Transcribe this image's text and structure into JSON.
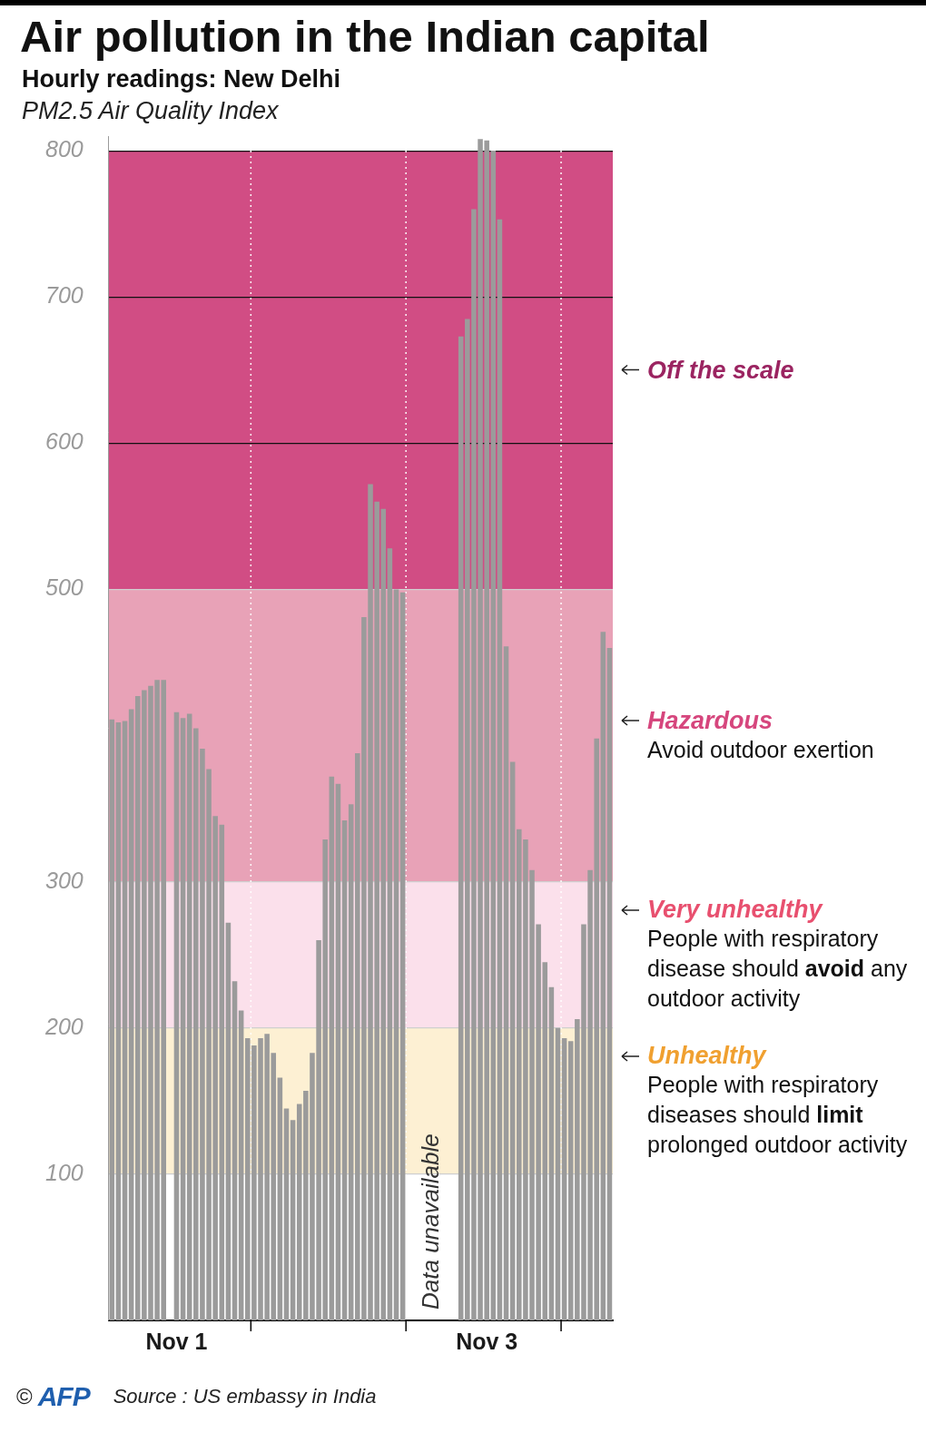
{
  "chart_data": {
    "type": "bar",
    "title": "Air pollution in the Indian capital",
    "subtitle": "Hourly readings: New Delhi",
    "y_label": "PM2.5 Air Quality Index",
    "categories": [
      null,
      null,
      null,
      null,
      null,
      null,
      null,
      null,
      null,
      null,
      "Nov 1",
      null,
      null,
      null,
      null,
      null,
      null,
      null,
      null,
      null,
      null,
      null,
      null,
      null,
      null,
      null,
      null,
      null,
      null,
      null,
      null,
      null,
      null,
      null,
      null,
      null,
      null,
      null,
      null,
      null,
      null,
      null,
      null,
      null,
      null,
      null,
      null,
      null,
      null,
      null,
      null,
      null,
      null,
      null,
      null,
      null,
      null,
      null,
      "Nov 3",
      null,
      null,
      null,
      null,
      null,
      null,
      null,
      null,
      null,
      null,
      null,
      null,
      null,
      null,
      null,
      null,
      null,
      null,
      null
    ],
    "values": [
      411,
      409,
      410,
      418,
      427,
      431,
      434,
      438,
      438,
      null,
      416,
      412,
      415,
      405,
      391,
      377,
      345,
      339,
      272,
      232,
      212,
      193,
      188,
      193,
      196,
      183,
      166,
      145,
      137,
      148,
      157,
      183,
      260,
      329,
      372,
      367,
      342,
      353,
      388,
      481,
      572,
      560,
      555,
      528,
      500,
      498,
      null,
      null,
      null,
      null,
      null,
      null,
      null,
      null,
      673,
      685,
      760,
      808,
      807,
      800,
      753,
      461,
      382,
      336,
      329,
      308,
      271,
      245,
      228,
      200,
      193,
      191,
      206,
      271,
      308,
      398,
      471,
      460
    ],
    "color": "#9b9b9b",
    "ylim": [
      0,
      810
    ],
    "yticks": [
      100,
      200,
      300,
      500,
      600,
      700,
      800
    ],
    "grid": true,
    "bands": [
      {
        "from": 500,
        "to": 800,
        "color": "#d14d84",
        "label": "Off the scale"
      },
      {
        "from": 300,
        "to": 500,
        "color": "#e8a2b7",
        "label": "Hazardous",
        "description": "Avoid outdoor exertion"
      },
      {
        "from": 200,
        "to": 300,
        "color": "#fbe0eb",
        "label": "Very unhealthy",
        "description": "People with respiratory disease should avoid any outdoor activity",
        "emphasis": "avoid"
      },
      {
        "from": 100,
        "to": 200,
        "color": "#fdf0d3",
        "label": "Unhealthy",
        "description": "People with respiratory diseases should limit prolonged outdoor activity",
        "emphasis": "limit"
      }
    ],
    "annotations": [
      {
        "text": "Data unavailable"
      }
    ],
    "source": "Source : US embassy in India",
    "credit": "©",
    "agency": "AFP"
  }
}
